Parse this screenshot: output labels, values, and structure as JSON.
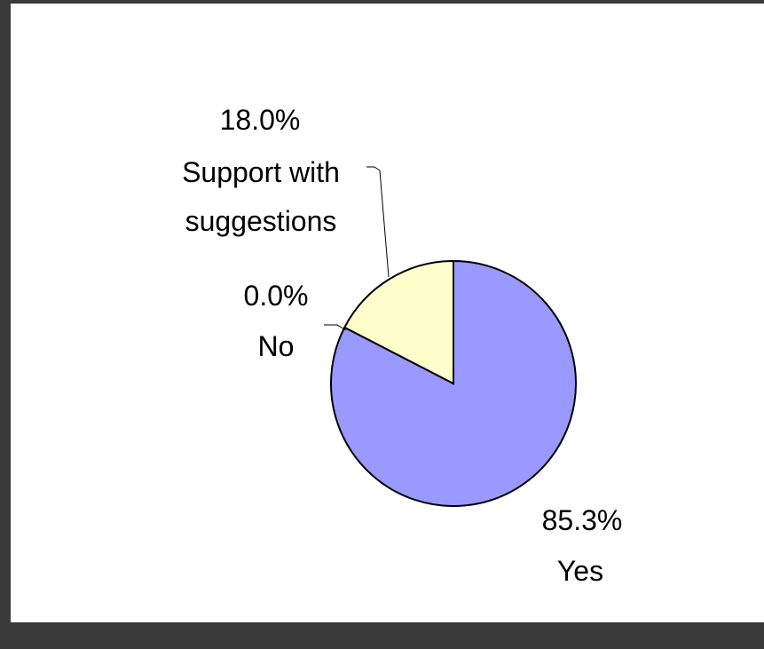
{
  "chart_data": {
    "type": "pie",
    "title": "",
    "slices": [
      {
        "label": "Yes",
        "value": 85.3,
        "value_label": "85.3%",
        "color": "#9999ff"
      },
      {
        "label": "Support with suggestions",
        "label_lines": [
          "Support with",
          "suggestions"
        ],
        "value": 18.0,
        "value_label": "18.0%",
        "color": "#ffffcc"
      },
      {
        "label": "No",
        "value": 0.0,
        "value_label": "0.0%",
        "color": "#ffffff"
      }
    ],
    "legend": "none",
    "data_labels": "outside"
  }
}
